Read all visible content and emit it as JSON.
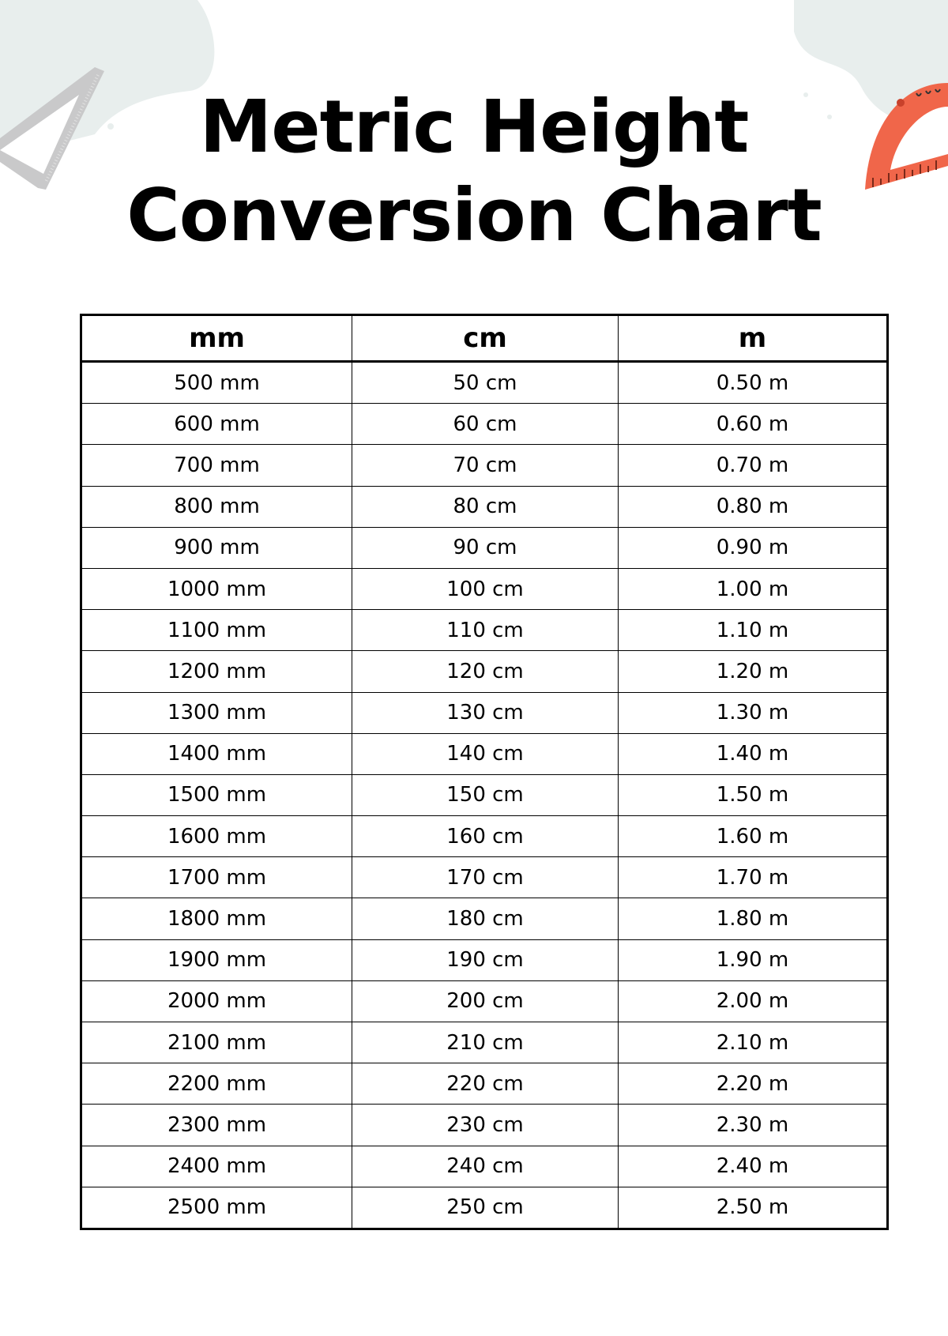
{
  "title": {
    "line1": "Metric Height",
    "line2": "Conversion Chart"
  },
  "colors": {
    "blob": "#e8eeed",
    "ruler": "#c9c9ca",
    "protractor": "#f0664a"
  },
  "decorations": [
    "set-square-ruler-icon",
    "protractor-icon"
  ],
  "table": {
    "headers": [
      "mm",
      "cm",
      "m"
    ],
    "rows": [
      [
        "500 mm",
        "50 cm",
        "0.50 m"
      ],
      [
        "600 mm",
        "60 cm",
        "0.60 m"
      ],
      [
        "700 mm",
        "70 cm",
        "0.70 m"
      ],
      [
        "800 mm",
        "80 cm",
        "0.80 m"
      ],
      [
        "900 mm",
        "90 cm",
        "0.90 m"
      ],
      [
        "1000 mm",
        "100 cm",
        "1.00 m"
      ],
      [
        "1100 mm",
        "110 cm",
        "1.10 m"
      ],
      [
        "1200 mm",
        "120 cm",
        "1.20 m"
      ],
      [
        "1300 mm",
        "130 cm",
        "1.30 m"
      ],
      [
        "1400 mm",
        "140 cm",
        "1.40 m"
      ],
      [
        "1500 mm",
        "150 cm",
        "1.50 m"
      ],
      [
        "1600 mm",
        "160 cm",
        "1.60 m"
      ],
      [
        "1700 mm",
        "170 cm",
        "1.70 m"
      ],
      [
        "1800 mm",
        "180 cm",
        "1.80 m"
      ],
      [
        "1900 mm",
        "190 cm",
        "1.90 m"
      ],
      [
        "2000 mm",
        "200 cm",
        "2.00 m"
      ],
      [
        "2100 mm",
        "210 cm",
        "2.10 m"
      ],
      [
        "2200 mm",
        "220 cm",
        "2.20 m"
      ],
      [
        "2300 mm",
        "230 cm",
        "2.30 m"
      ],
      [
        "2400 mm",
        "240 cm",
        "2.40 m"
      ],
      [
        "2500 mm",
        "250 cm",
        "2.50 m"
      ]
    ]
  }
}
